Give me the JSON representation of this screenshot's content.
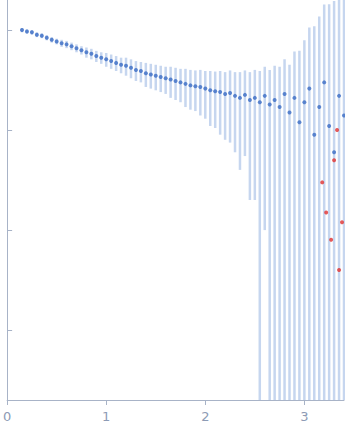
{
  "chart_data": {
    "type": "scatter",
    "xlim": [
      0,
      3.4
    ],
    "xticks": [
      0,
      1,
      2,
      3
    ],
    "ylim": [
      0.0002,
      2
    ],
    "yticks": [
      0.001,
      0.01,
      0.1,
      1
    ],
    "log": "y",
    "grid": false,
    "tick_labels": "x",
    "series": [
      {
        "color": "#3a6bc4",
        "marker": "circle",
        "x": [
          0.15,
          0.2,
          0.25,
          0.3,
          0.35,
          0.4,
          0.45,
          0.5,
          0.55,
          0.6,
          0.65,
          0.7,
          0.75,
          0.8,
          0.85,
          0.9,
          0.95,
          1.0,
          1.05,
          1.1,
          1.15,
          1.2,
          1.25,
          1.3,
          1.35,
          1.4,
          1.45,
          1.5,
          1.55,
          1.6,
          1.65,
          1.7,
          1.75,
          1.8,
          1.85,
          1.9,
          1.95,
          2.0,
          2.05,
          2.1,
          2.15,
          2.2,
          2.25,
          2.3,
          2.35,
          2.4,
          2.45,
          2.5,
          2.55,
          2.6,
          2.65,
          2.7,
          2.75,
          2.8,
          2.85,
          2.9,
          2.95,
          3.0,
          3.05,
          3.1,
          3.15,
          3.2,
          3.25,
          3.3,
          3.35,
          3.4
        ],
        "values": [
          1.0,
          0.97,
          0.95,
          0.9,
          0.88,
          0.84,
          0.8,
          0.77,
          0.74,
          0.72,
          0.69,
          0.66,
          0.63,
          0.6,
          0.58,
          0.55,
          0.53,
          0.51,
          0.49,
          0.47,
          0.45,
          0.44,
          0.42,
          0.4,
          0.39,
          0.37,
          0.36,
          0.35,
          0.34,
          0.33,
          0.32,
          0.31,
          0.3,
          0.29,
          0.28,
          0.275,
          0.27,
          0.26,
          0.25,
          0.245,
          0.24,
          0.23,
          0.235,
          0.22,
          0.21,
          0.225,
          0.2,
          0.21,
          0.19,
          0.22,
          0.18,
          0.2,
          0.17,
          0.23,
          0.15,
          0.21,
          0.12,
          0.19,
          0.26,
          0.09,
          0.17,
          0.3,
          0.11,
          0.06,
          0.22,
          0.14
        ],
        "errors": [
          0.05,
          0.05,
          0.05,
          0.05,
          0.05,
          0.05,
          0.05,
          0.05,
          0.06,
          0.06,
          0.06,
          0.06,
          0.06,
          0.07,
          0.07,
          0.07,
          0.07,
          0.08,
          0.08,
          0.08,
          0.08,
          0.09,
          0.09,
          0.09,
          0.09,
          0.1,
          0.1,
          0.1,
          0.1,
          0.1,
          0.11,
          0.11,
          0.11,
          0.12,
          0.12,
          0.12,
          0.13,
          0.13,
          0.14,
          0.14,
          0.15,
          0.15,
          0.16,
          0.16,
          0.17,
          0.17,
          0.18,
          0.19,
          0.2,
          0.21,
          0.22,
          0.24,
          0.26,
          0.28,
          0.3,
          0.4,
          0.5,
          0.6,
          0.8,
          1.0,
          1.2,
          1.5,
          1.7,
          1.9,
          2.0,
          2.2
        ]
      },
      {
        "color": "#e0312f",
        "marker": "circle",
        "x": [
          3.18,
          3.22,
          3.27,
          3.3,
          3.33,
          3.35,
          3.38
        ],
        "values": [
          0.03,
          0.015,
          0.008,
          0.05,
          0.1,
          0.004,
          0.012
        ]
      }
    ]
  }
}
